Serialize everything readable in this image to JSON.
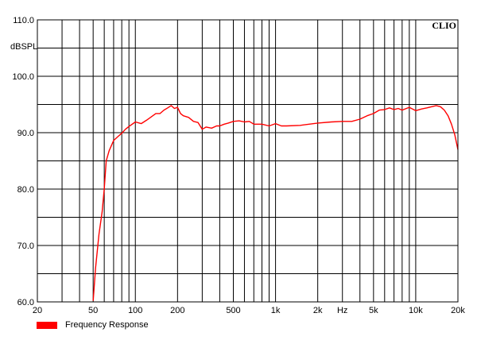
{
  "chart_data": {
    "type": "line",
    "brand": "CLIO",
    "ylabel": "dBSPL",
    "xlabel": "",
    "xscale": "log",
    "xlim": [
      20,
      20000
    ],
    "ylim": [
      60,
      110
    ],
    "grid": true,
    "legend_position": "bottom-left",
    "x_tick_labels": [
      {
        "x": 20,
        "label": "20"
      },
      {
        "x": 50,
        "label": "50"
      },
      {
        "x": 100,
        "label": "100"
      },
      {
        "x": 200,
        "label": "200"
      },
      {
        "x": 500,
        "label": "500"
      },
      {
        "x": 1000,
        "label": "1k"
      },
      {
        "x": 2000,
        "label": "2k"
      },
      {
        "x": 3000,
        "label": "Hz"
      },
      {
        "x": 5000,
        "label": "5k"
      },
      {
        "x": 10000,
        "label": "10k"
      },
      {
        "x": 20000,
        "label": "20k"
      }
    ],
    "y_tick_labels": [
      {
        "y": 60,
        "label": "60.0"
      },
      {
        "y": 70,
        "label": "70.0"
      },
      {
        "y": 80,
        "label": "80.0"
      },
      {
        "y": 90,
        "label": "90.0"
      },
      {
        "y": 100,
        "label": "100.0"
      },
      {
        "y": 110,
        "label": "110.0"
      }
    ],
    "series": [
      {
        "name": "Frequency Response",
        "color": "#ff0000",
        "x": [
          50,
          52,
          55,
          58,
          60,
          62,
          65,
          70,
          75,
          80,
          85,
          90,
          100,
          110,
          120,
          130,
          140,
          150,
          160,
          170,
          180,
          190,
          200,
          210,
          220,
          240,
          260,
          280,
          300,
          320,
          350,
          380,
          400,
          430,
          460,
          500,
          550,
          600,
          650,
          700,
          800,
          900,
          1000,
          1100,
          1200,
          1500,
          2000,
          2500,
          3000,
          3500,
          4000,
          4500,
          5000,
          5500,
          6000,
          6500,
          7000,
          7500,
          8000,
          9000,
          10000,
          11000,
          12000,
          13000,
          14000,
          15000,
          16000,
          17000,
          18000,
          19000,
          20000
        ],
        "y": [
          60.2,
          66,
          72,
          76,
          80,
          85,
          86.8,
          88.6,
          89.3,
          89.9,
          90.6,
          91.1,
          91.9,
          91.6,
          92.2,
          92.8,
          93.4,
          93.4,
          94.0,
          94.4,
          94.8,
          94.3,
          94.5,
          93.4,
          93.0,
          92.7,
          92.0,
          91.8,
          90.6,
          91.0,
          90.8,
          91.2,
          91.2,
          91.5,
          91.7,
          92.0,
          92.1,
          91.9,
          92.0,
          91.5,
          91.5,
          91.2,
          91.6,
          91.2,
          91.2,
          91.3,
          91.7,
          91.9,
          92.0,
          92.0,
          92.4,
          93.0,
          93.4,
          94.0,
          94.1,
          94.4,
          94.1,
          94.3,
          94.0,
          94.5,
          93.9,
          94.2,
          94.4,
          94.6,
          94.8,
          94.6,
          94.0,
          93.0,
          91.5,
          89.6,
          87.0
        ]
      }
    ]
  }
}
